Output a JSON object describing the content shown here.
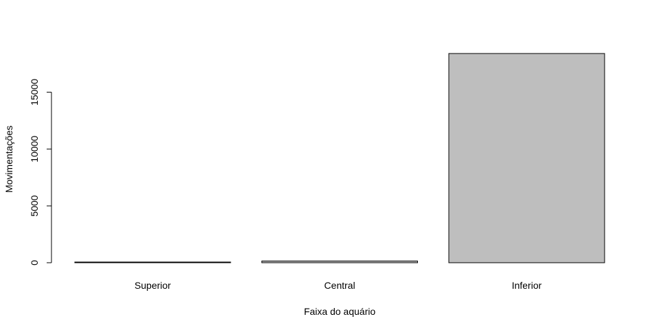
{
  "chart_data": {
    "type": "bar",
    "title": "",
    "xlabel": "Faixa do aquário",
    "ylabel": "Movimentações",
    "categories": [
      "Superior",
      "Central",
      "Inferior"
    ],
    "values": [
      30,
      150,
      18400
    ],
    "ylim": [
      0,
      18400
    ],
    "yticks": [
      0,
      5000,
      10000,
      15000
    ],
    "bar_color": "#bebebe",
    "grid": false,
    "legend": "none"
  }
}
